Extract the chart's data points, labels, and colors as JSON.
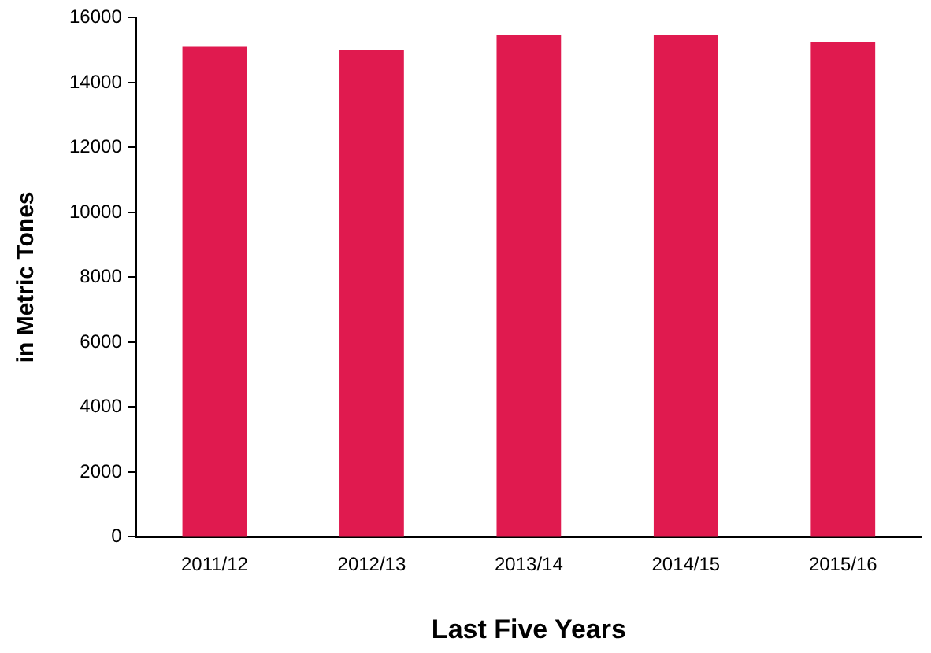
{
  "chart_data": {
    "type": "bar",
    "xlabel": "Last Five Years",
    "ylabel": "in Metric Tones",
    "categories": [
      "2011/12",
      "2012/13",
      "2013/14",
      "2014/15",
      "2015/16"
    ],
    "values": [
      15100,
      15000,
      15450,
      15450,
      15250
    ],
    "color": "#e01a4f",
    "ylim": [
      0,
      16000
    ],
    "yticks": [
      0,
      2000,
      4000,
      6000,
      8000,
      10000,
      12000,
      14000,
      16000
    ],
    "grid": false,
    "legend": false
  }
}
